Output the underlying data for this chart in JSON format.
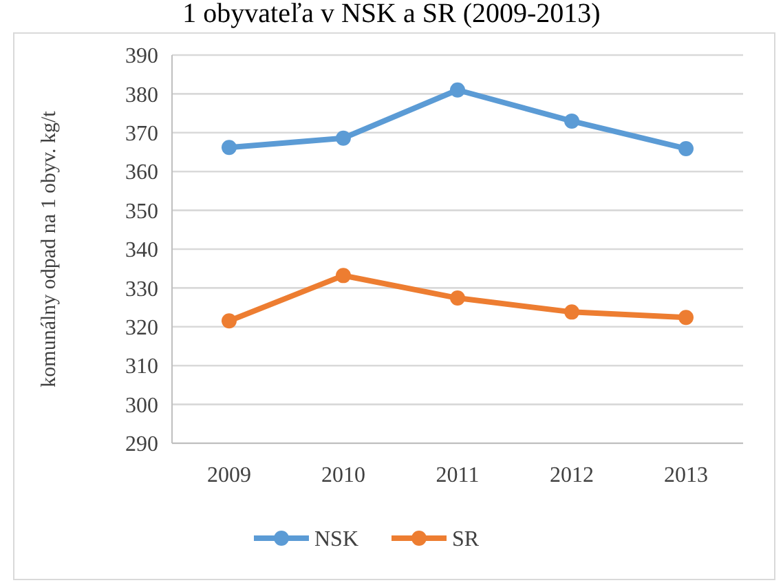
{
  "chart_data": {
    "type": "line",
    "title": "1 obyvateľa v NSK a SR (2009-2013)",
    "ylabel": "komunálny odpad na 1 obyv. kg/t",
    "categories": [
      "2009",
      "2010",
      "2011",
      "2012",
      "2013"
    ],
    "series": [
      {
        "name": "NSK",
        "color": "#5b9bd5",
        "values": [
          366.2,
          368.6,
          381,
          373,
          365.9
        ]
      },
      {
        "name": "SR",
        "color": "#ed7d31",
        "values": [
          321.5,
          333.2,
          327.4,
          323.8,
          322.4
        ]
      }
    ],
    "ylim": [
      290,
      390
    ],
    "yticks": [
      290,
      300,
      310,
      320,
      330,
      340,
      350,
      360,
      370,
      380,
      390
    ],
    "grid": "y",
    "legend": "bottom",
    "marker": "circle"
  }
}
